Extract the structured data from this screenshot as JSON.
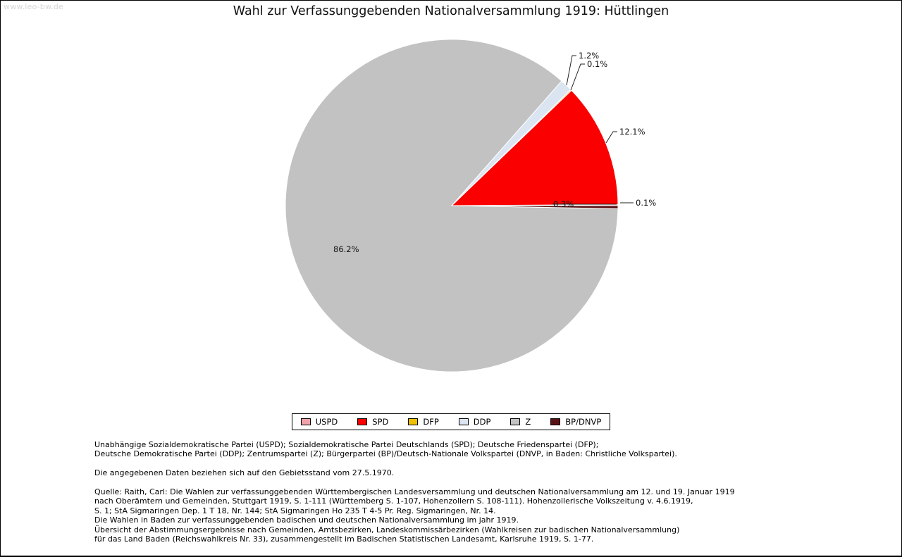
{
  "page": {
    "watermark": "www.leo-bw.de"
  },
  "chart_data": {
    "type": "pie",
    "title": "Wahl zur Verfassunggebenden Nationalversammlung 1919: Hüttlingen",
    "start_angle_deg": 0,
    "direction": "counterclockwise",
    "legend_position": "bottom",
    "slices": [
      {
        "label": "USPD",
        "value": 0.1,
        "percent_label": "0.1%",
        "color": "#f2a2aa"
      },
      {
        "label": "SPD",
        "value": 12.1,
        "percent_label": "12.1%",
        "color": "#fa0000"
      },
      {
        "label": "DFP",
        "value": 0.1,
        "percent_label": "0.1%",
        "color": "#f0c000"
      },
      {
        "label": "DDP",
        "value": 1.2,
        "percent_label": "1.2%",
        "color": "#dbe5f1"
      },
      {
        "label": "Z",
        "value": 86.2,
        "percent_label": "86.2%",
        "color": "#c2c2c2"
      },
      {
        "label": "BP/DNVP",
        "value": 0.3,
        "percent_label": "0.3%",
        "color": "#5a1216"
      }
    ]
  },
  "footer": {
    "lines": [
      "Unabhängige Sozialdemokratische Partei (USPD); Sozialdemokratische Partei Deutschlands (SPD); Deutsche Friedenspartei (DFP);",
      "Deutsche Demokratische Partei (DDP); Zentrumspartei (Z); Bürgerpartei (BP)/Deutsch-Nationale Volkspartei (DNVP, in Baden: Christliche Volkspartei).",
      "",
      "Die angegebenen Daten beziehen sich auf den Gebietsstand vom 27.5.1970.",
      "",
      "Quelle: Raith, Carl: Die Wahlen zur verfassunggebenden Württembergischen Landesversammlung und deutschen Nationalversammlung am 12. und 19. Januar 1919",
      "nach Oberämtern und Gemeinden, Stuttgart 1919, S. 1-111 (Württemberg S. 1-107, Hohenzollern S. 108-111). Hohenzollerische Volkszeitung v. 4.6.1919,",
      "S. 1; StA Sigmaringen Dep. 1 T 18, Nr. 144; StA Sigmaringen Ho 235 T 4-5 Pr. Reg. Sigmaringen, Nr. 14.",
      "Die Wahlen in Baden zur verfassunggebenden badischen und deutschen Nationalversammlung im jahr 1919.",
      "Übersicht der Abstimmungsergebnisse nach Gemeinden, Amtsbezirken, Landeskommissärbezirken (Wahlkreisen zur badischen Nationalversammlung)",
      "für das Land Baden (Reichswahlkreis Nr. 33), zusammengestellt im Badischen Statistischen Landesamt, Karlsruhe 1919, S. 1-77."
    ]
  }
}
